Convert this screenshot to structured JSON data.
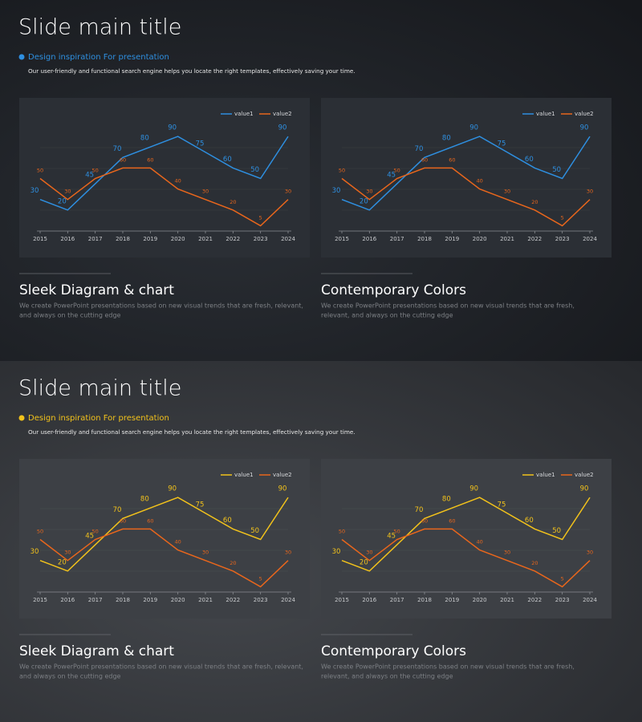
{
  "slides": [
    {
      "title": "Slide main title",
      "subtitle": "Design inspiration For presentation",
      "bullet_color": "#2e8fe0",
      "description": "Our user-friendly and functional search engine helps you locate the right templates, effectively saving your time.",
      "panels": [
        {
          "heading": "Sleek Diagram & chart",
          "text": [
            "We create PowerPoint presentations based on new visual trends that are fresh, relevant,",
            "and always on the cutting edge"
          ]
        },
        {
          "heading": "Contemporary Colors",
          "text": [
            "We create PowerPoint presentations based on new visual trends that are fresh,",
            "relevant, and always on the cutting edge"
          ]
        }
      ]
    },
    {
      "title": "Slide main title",
      "subtitle": "Design inspiration For presentation",
      "bullet_color": "#f2c21b",
      "description": "Our user-friendly and functional search engine helps you locate the right templates, effectively saving your time.",
      "panels": [
        {
          "heading": "Sleek Diagram & chart",
          "text": [
            "We create PowerPoint presentations based on new visual trends that are fresh, relevant,",
            "and always on the cutting edge"
          ]
        },
        {
          "heading": "Contemporary Colors",
          "text": [
            "We create PowerPoint presentations based on new visual trends that are fresh,",
            "relevant, and always on the cutting edge"
          ]
        }
      ]
    }
  ],
  "chart_data": [
    {
      "type": "line",
      "categories": [
        "2015",
        "2016",
        "2017",
        "2018",
        "2019",
        "2020",
        "2021",
        "2022",
        "2023",
        "2024"
      ],
      "ylim": [
        0,
        100
      ],
      "legend": "upper right",
      "series": [
        {
          "name": "value1",
          "color": "#2e8fe0",
          "values": [
            30,
            20,
            45,
            70,
            80,
            90,
            75,
            60,
            50,
            90
          ]
        },
        {
          "name": "value2",
          "color": "#e8661c",
          "values": [
            50,
            30,
            50,
            60,
            60,
            40,
            30,
            20,
            5,
            30
          ]
        }
      ]
    },
    {
      "type": "line",
      "categories": [
        "2015",
        "2016",
        "2017",
        "2018",
        "2019",
        "2020",
        "2021",
        "2022",
        "2023",
        "2024"
      ],
      "ylim": [
        0,
        100
      ],
      "legend": "upper right",
      "series": [
        {
          "name": "value1",
          "color": "#2e8fe0",
          "values": [
            30,
            20,
            45,
            70,
            80,
            90,
            75,
            60,
            50,
            90
          ]
        },
        {
          "name": "value2",
          "color": "#e8661c",
          "values": [
            50,
            30,
            50,
            60,
            60,
            40,
            30,
            20,
            5,
            30
          ]
        }
      ]
    },
    {
      "type": "line",
      "categories": [
        "2015",
        "2016",
        "2017",
        "2018",
        "2019",
        "2020",
        "2021",
        "2022",
        "2023",
        "2024"
      ],
      "ylim": [
        0,
        100
      ],
      "legend": "upper right",
      "series": [
        {
          "name": "value1",
          "color": "#f2c21b",
          "values": [
            30,
            20,
            45,
            70,
            80,
            90,
            75,
            60,
            50,
            90
          ]
        },
        {
          "name": "value2",
          "color": "#e8661c",
          "values": [
            50,
            30,
            50,
            60,
            60,
            40,
            30,
            20,
            5,
            30
          ]
        }
      ]
    },
    {
      "type": "line",
      "categories": [
        "2015",
        "2016",
        "2017",
        "2018",
        "2019",
        "2020",
        "2021",
        "2022",
        "2023",
        "2024"
      ],
      "ylim": [
        0,
        100
      ],
      "legend": "upper right",
      "series": [
        {
          "name": "value1",
          "color": "#f2c21b",
          "values": [
            30,
            20,
            45,
            70,
            80,
            90,
            75,
            60,
            50,
            90
          ]
        },
        {
          "name": "value2",
          "color": "#e8661c",
          "values": [
            50,
            30,
            50,
            60,
            60,
            40,
            30,
            20,
            5,
            30
          ]
        }
      ]
    }
  ]
}
